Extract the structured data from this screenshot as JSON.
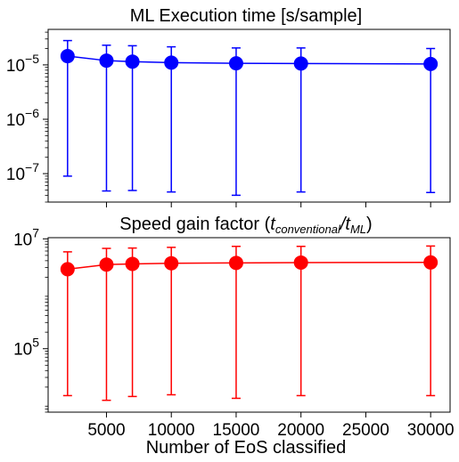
{
  "chart_data": [
    {
      "type": "line",
      "title": "ML Execution time [s/sample]",
      "yscale": "log",
      "ylim": [
        3e-08,
        4.5e-05
      ],
      "xlim": [
        500,
        31500
      ],
      "y_tick_labels": [
        {
          "value": 1e-07,
          "base": "10",
          "exp": "−7"
        },
        {
          "value": 1e-06,
          "base": "10",
          "exp": "−6"
        },
        {
          "value": 1e-05,
          "base": "10",
          "exp": "−5"
        }
      ],
      "x_tick_values": [
        5000,
        10000,
        15000,
        20000,
        25000,
        30000
      ],
      "show_x_tick_labels": false,
      "color": "#0000ff",
      "series": [
        {
          "x": [
            2000,
            5000,
            7000,
            10000,
            15000,
            20000,
            30000
          ],
          "y": [
            1.45e-05,
            1.2e-05,
            1.15e-05,
            1.1e-05,
            1.07e-05,
            1.06e-05,
            1.04e-05
          ],
          "err_low": [
            9e-08,
            4.8e-08,
            4.9e-08,
            4.6e-08,
            4e-08,
            4.6e-08,
            4.5e-08
          ],
          "err_high": [
            2.8e-05,
            2.3e-05,
            2.25e-05,
            2.15e-05,
            2.05e-05,
            2.05e-05,
            2e-05
          ]
        }
      ]
    },
    {
      "type": "line",
      "title_main": "Speed gain factor (",
      "title_t1": "t",
      "title_sub1": "conventional",
      "title_slash": "/",
      "title_t2": "t",
      "title_sub2": "ML",
      "title_close": ")",
      "yscale": "log",
      "ylim": [
        7000,
        10500000.0
      ],
      "xlim": [
        500,
        31500
      ],
      "y_tick_labels": [
        {
          "value": 100000,
          "base": "10",
          "exp": "5"
        },
        {
          "value": 10000000,
          "base": "10",
          "exp": "7"
        }
      ],
      "x_tick_values": [
        5000,
        10000,
        15000,
        20000,
        25000,
        30000
      ],
      "x_tick_labels": [
        "5000",
        "10000",
        "15000",
        "20000",
        "25000",
        "30000"
      ],
      "xlabel": "Number of EoS classified",
      "color": "#ff0000",
      "series": [
        {
          "x": [
            2000,
            5000,
            7000,
            10000,
            15000,
            20000,
            30000
          ],
          "y": [
            2800000.0,
            3400000.0,
            3500000.0,
            3600000.0,
            3650000.0,
            3700000.0,
            3720000.0
          ],
          "err_low": [
            14000,
            11500,
            13500,
            14500,
            12500,
            14000,
            14000
          ],
          "err_high": [
            5800000.0,
            6700000.0,
            6800000.0,
            7000000.0,
            7300000.0,
            7300000.0,
            7400000.0
          ]
        }
      ]
    }
  ]
}
